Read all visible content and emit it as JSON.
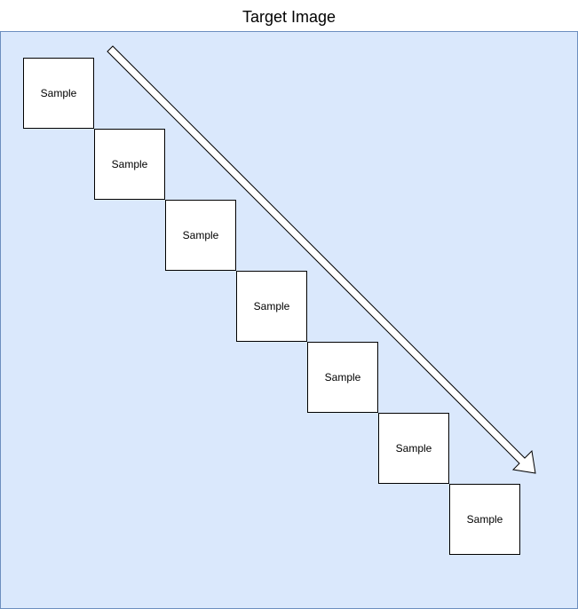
{
  "title": "Target Image",
  "colors": {
    "frame_fill": "#dae8fc",
    "frame_stroke": "#6c8ebf",
    "box_fill": "#ffffff",
    "stroke": "#000000"
  },
  "boxes": [
    {
      "label": "Sample"
    },
    {
      "label": "Sample"
    },
    {
      "label": "Sample"
    },
    {
      "label": "Sample"
    },
    {
      "label": "Sample"
    },
    {
      "label": "Sample"
    },
    {
      "label": "Sample"
    }
  ],
  "arrow": {
    "icon": "diagonal-block-arrow-icon"
  }
}
